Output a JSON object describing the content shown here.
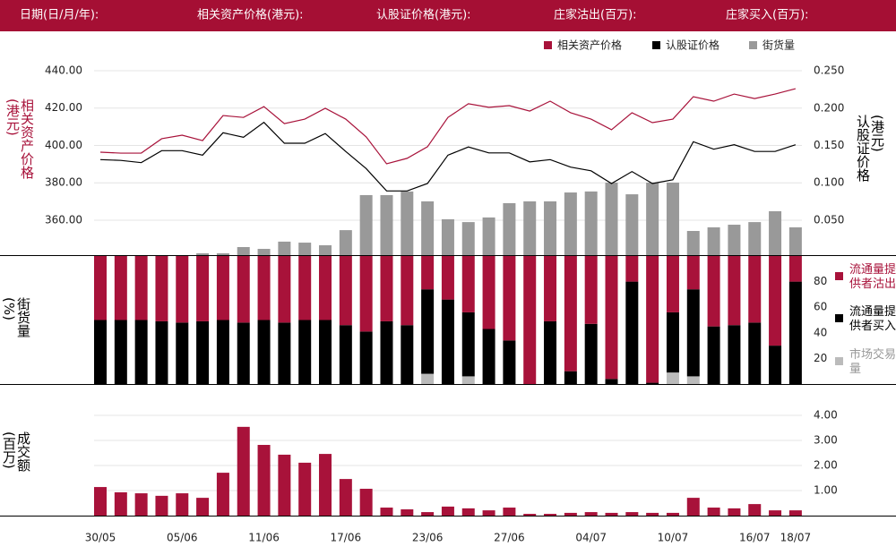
{
  "header": {
    "labels": [
      "日期(日/月/年):",
      "相关资产价格(港元):",
      "认股证价格(港元):",
      "庄家沽出(百万):",
      "庄家买入(百万):"
    ]
  },
  "chart_data": [
    {
      "type": "line_bar",
      "legend": "top-right",
      "ylabel": "相关资产价格(港元)",
      "y2label": "认股证价格(港元)",
      "ylim": [
        341.3,
        449.1
      ],
      "yticks": [
        {
          "value": 360,
          "label": "360.00"
        },
        {
          "value": 380,
          "label": "380.00"
        },
        {
          "value": 400,
          "label": "400.00"
        },
        {
          "value": 420,
          "label": "420.00"
        },
        {
          "value": 440,
          "label": "440.00"
        }
      ],
      "y2lim": [
        0.003,
        0.273
      ],
      "y2ticks": [
        {
          "value": 0.05,
          "label": "0.050"
        },
        {
          "value": 0.1,
          "label": "0.100"
        },
        {
          "value": 0.15,
          "label": "0.150"
        },
        {
          "value": 0.2,
          "label": "0.200"
        },
        {
          "value": 0.25,
          "label": "0.250"
        }
      ],
      "y3lim": [
        0,
        100
      ],
      "grid": true,
      "series": [
        {
          "name": "相关资产价格",
          "color": "#a8123a",
          "type": "line",
          "axis": "y",
          "values": [
            396.4,
            395.9,
            395.9,
            403.6,
            405.5,
            402.6,
            416.0,
            415.0,
            420.8,
            411.7,
            414.1,
            419.9,
            414.1,
            404.6,
            390.2,
            393.1,
            399.3,
            415.0,
            422.3,
            420.4,
            421.3,
            418.4,
            423.7,
            417.5,
            414.1,
            408.4,
            417.5,
            412.2,
            414.1,
            426.1,
            423.7,
            427.5,
            425.1,
            427.5,
            430.4
          ]
        },
        {
          "name": "认股证价格",
          "color": "#000000",
          "type": "line",
          "axis": "y2",
          "values": [
            0.131,
            0.13,
            0.127,
            0.143,
            0.143,
            0.137,
            0.167,
            0.161,
            0.181,
            0.153,
            0.153,
            0.166,
            0.142,
            0.119,
            0.089,
            0.089,
            0.099,
            0.137,
            0.148,
            0.14,
            0.14,
            0.128,
            0.131,
            0.121,
            0.116,
            0.099,
            0.115,
            0.099,
            0.104,
            0.155,
            0.145,
            0.151,
            0.142,
            0.142,
            0.151
          ]
        },
        {
          "name": "街货量",
          "color": "#999999",
          "type": "bar",
          "axis": "y3",
          "values": [
            0,
            0,
            0,
            0,
            0,
            0.9,
            0.9,
            4.0,
            3.1,
            6.7,
            6.2,
            4.9,
            12.4,
            29.8,
            29.8,
            31.6,
            26.7,
            17.8,
            16.4,
            18.7,
            25.8,
            26.7,
            26.7,
            31.1,
            31.6,
            36.0,
            30.2,
            36.0,
            36.0,
            12.0,
            13.8,
            15.1,
            16.4,
            21.8,
            13.8
          ]
        }
      ]
    },
    {
      "type": "stacked_bar",
      "legend": "right",
      "ylabel": "街货量(%)",
      "ylim": [
        0,
        100
      ],
      "yticks": [
        20,
        40,
        60,
        80
      ],
      "series": [
        {
          "name": "流通量提供者沽出",
          "color": "#a8123a",
          "values": [
            50,
            50,
            50,
            51,
            52,
            51,
            50,
            52,
            50,
            52,
            50,
            50,
            54,
            59,
            51,
            54,
            26,
            34,
            44,
            57,
            66,
            100,
            51,
            90,
            53,
            96,
            20,
            99,
            44,
            26,
            55,
            54,
            52,
            70,
            20
          ]
        },
        {
          "name": "流通量提供者买入",
          "color": "#000000",
          "values": [
            50,
            50,
            50,
            49,
            48,
            49,
            50,
            48,
            50,
            48,
            50,
            50,
            46,
            41,
            49,
            46,
            66,
            66,
            50,
            43,
            34,
            0,
            49,
            10,
            47,
            4,
            80,
            1,
            47,
            68,
            45,
            46,
            48,
            30,
            80
          ]
        },
        {
          "name": "市场交易量",
          "color": "#bbbbbb",
          "values": [
            0,
            0,
            0,
            0,
            0,
            0,
            0,
            0,
            0,
            0,
            0,
            0,
            0,
            0,
            0,
            0,
            8,
            0,
            6,
            0,
            0,
            0,
            0,
            0,
            0,
            0,
            0,
            0,
            9,
            6,
            0,
            0,
            0,
            0,
            0
          ]
        }
      ]
    },
    {
      "type": "bar",
      "ylabel": "成交额(百万)",
      "color": "#a8123a",
      "grid": true,
      "ylim": [
        0,
        4.32
      ],
      "yticks": [
        {
          "value": 1,
          "label": "1.00"
        },
        {
          "value": 2,
          "label": "2.00"
        },
        {
          "value": 3,
          "label": "3.00"
        },
        {
          "value": 4,
          "label": "4.00"
        }
      ],
      "categories": [
        "30/05",
        null,
        null,
        null,
        "05/06",
        null,
        null,
        null,
        "11/06",
        null,
        null,
        null,
        "17/06",
        null,
        null,
        null,
        "23/06",
        null,
        null,
        null,
        "27/06",
        null,
        null,
        null,
        "04/07",
        null,
        null,
        null,
        "10/07",
        null,
        null,
        null,
        "16/07",
        null,
        "18/07"
      ],
      "values": [
        1.14,
        0.93,
        0.89,
        0.79,
        0.89,
        0.71,
        1.71,
        3.54,
        2.82,
        2.43,
        2.11,
        2.46,
        1.46,
        1.07,
        0.32,
        0.25,
        0.14,
        0.36,
        0.29,
        0.21,
        0.32,
        0.07,
        0.07,
        0.11,
        0.14,
        0.11,
        0.14,
        0.11,
        0.11,
        0.71,
        0.32,
        0.29,
        0.46,
        0.21,
        0.21
      ]
    }
  ]
}
